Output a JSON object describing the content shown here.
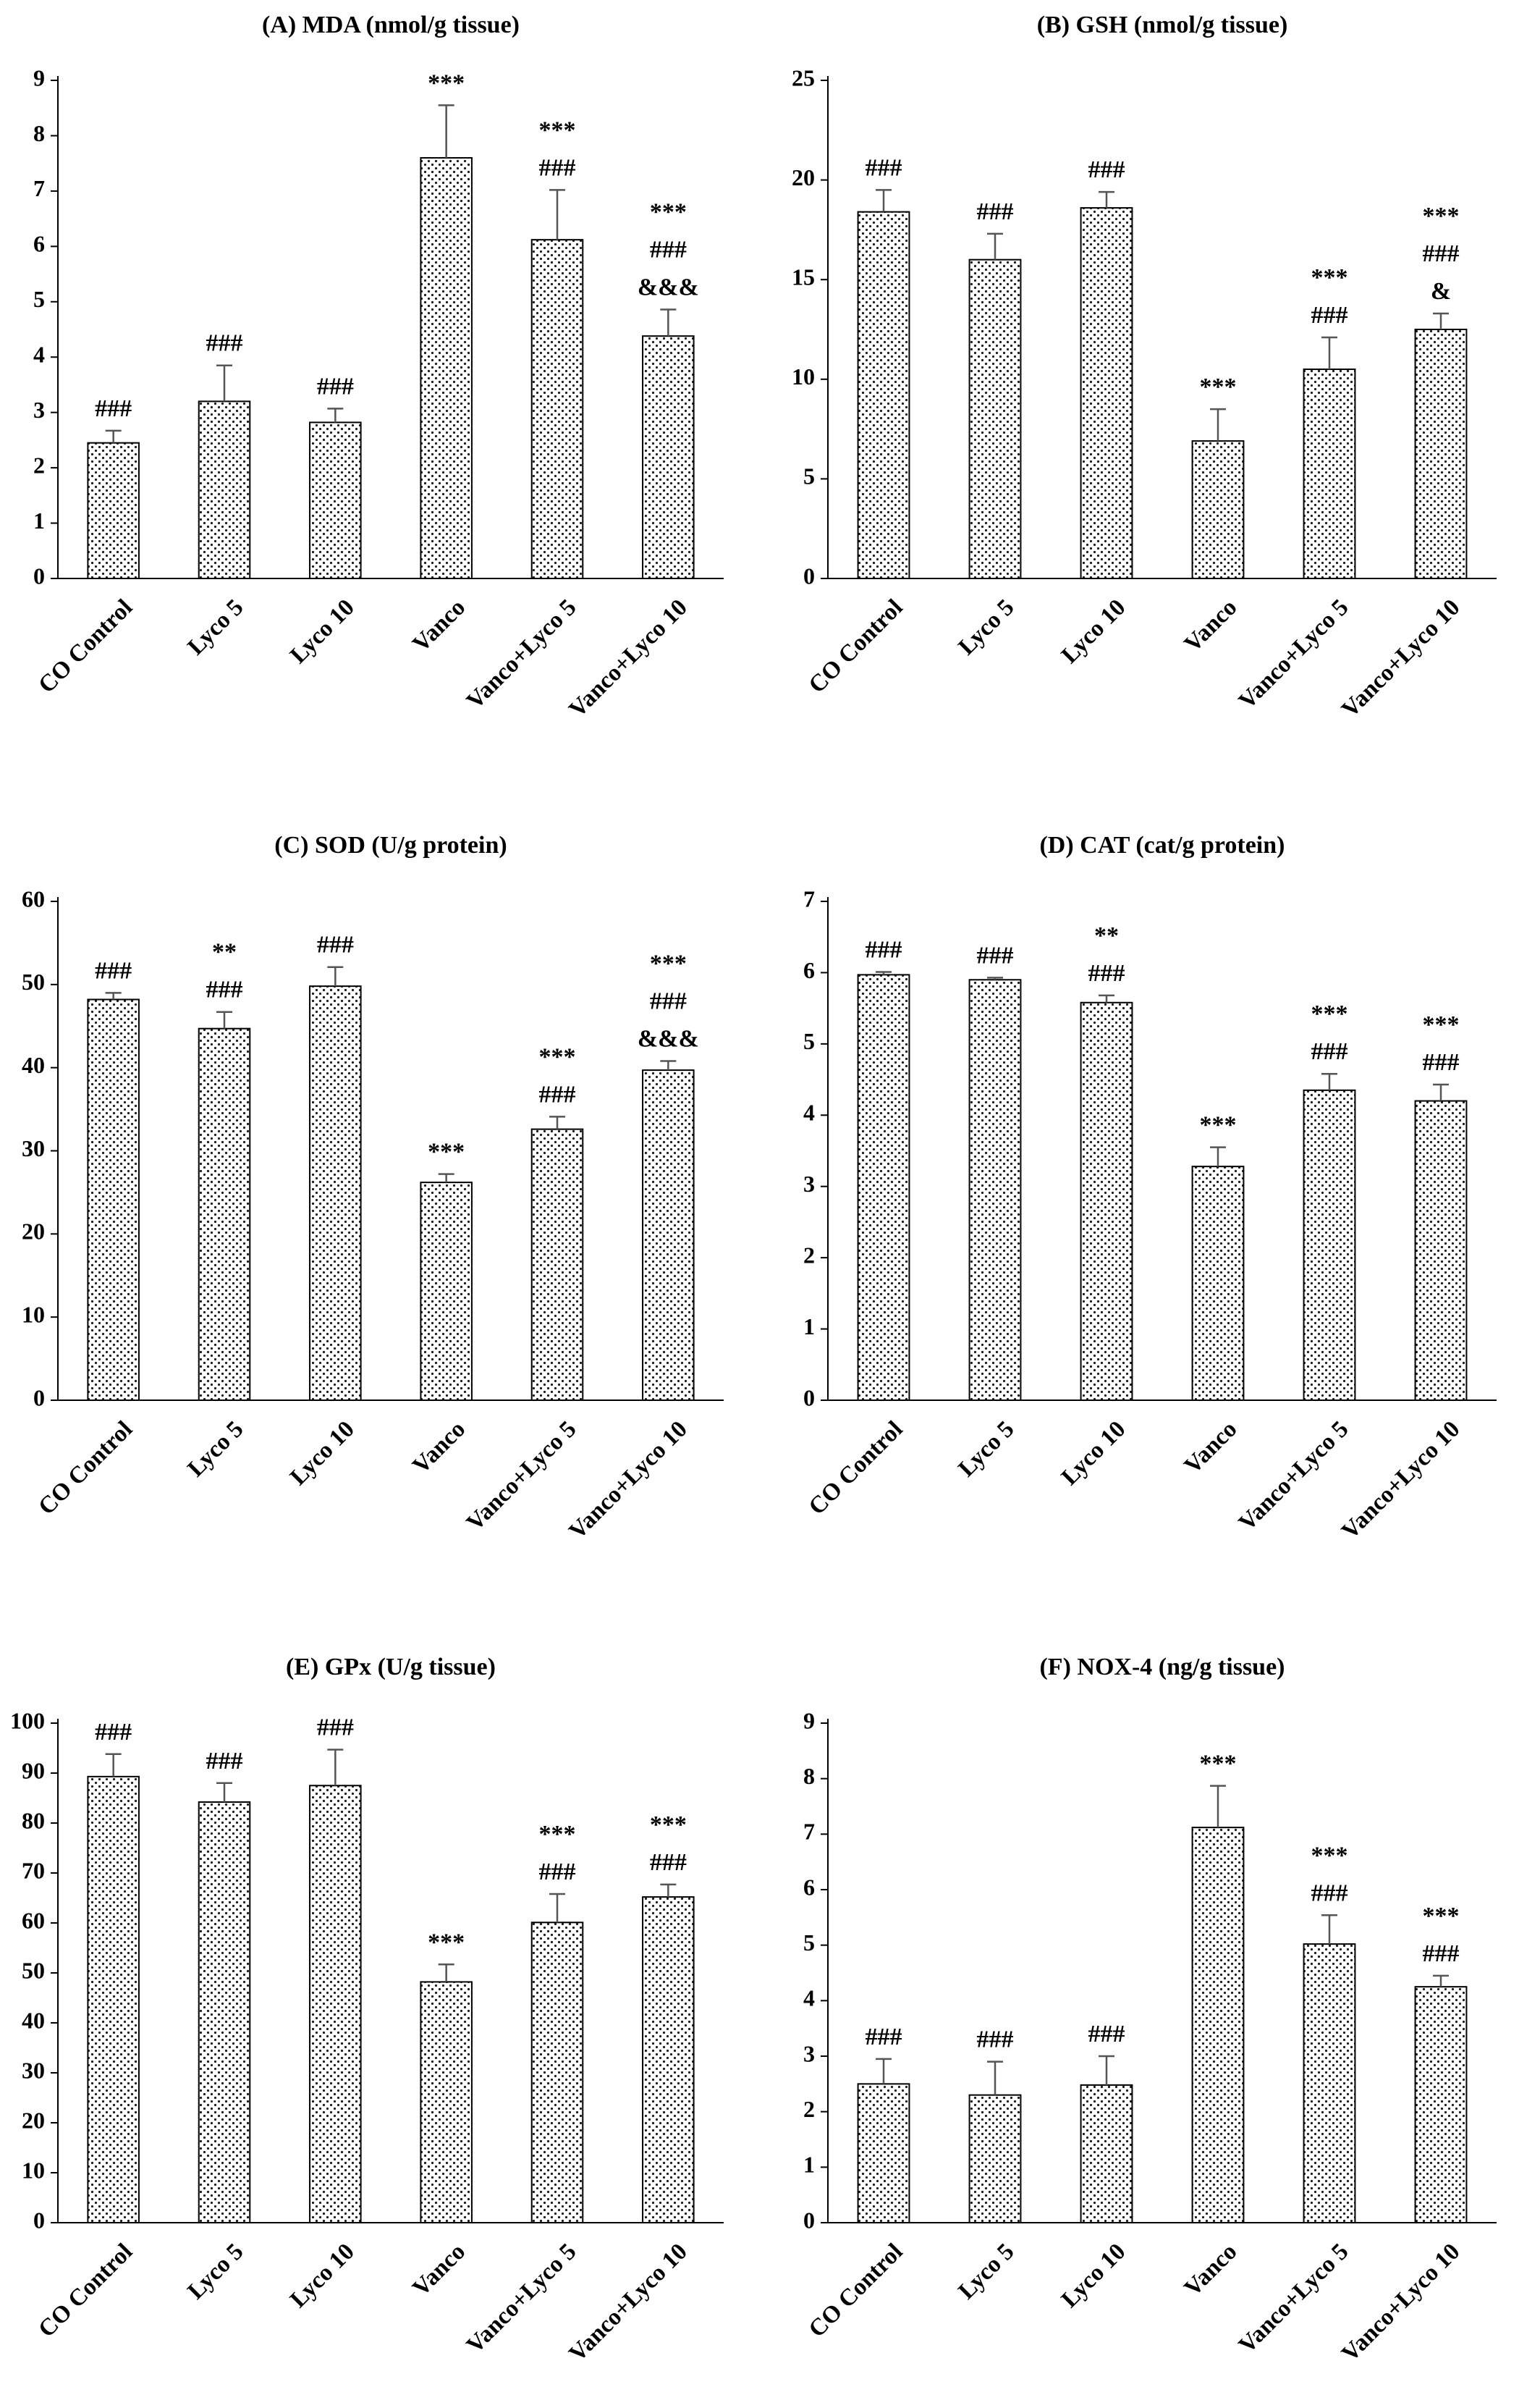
{
  "colors": {
    "bar_fill": "#ffffff",
    "bar_dots": "#1a1a1a",
    "bar_stroke": "#000000",
    "axis": "#000000",
    "error_bar": "#555555"
  },
  "chart_data": [
    {
      "type": "bar",
      "title": "(A) MDA (nmol/g tissue)",
      "categories": [
        "CO Control",
        "Lyco 5",
        "Lyco 10",
        "Vanco",
        "Vanco+Lyco 5",
        "Vanco+Lyco 10"
      ],
      "values": [
        2.45,
        3.2,
        2.82,
        7.6,
        6.12,
        4.38
      ],
      "errors": [
        0.22,
        0.65,
        0.25,
        0.95,
        0.9,
        0.48
      ],
      "annotations": [
        [
          "###"
        ],
        [
          "###"
        ],
        [
          "###"
        ],
        [
          "***"
        ],
        [
          "***",
          "###"
        ],
        [
          "***",
          "###",
          "&&&"
        ]
      ],
      "ylim": [
        0,
        9
      ],
      "yticks": [
        0,
        1,
        2,
        3,
        4,
        5,
        6,
        7,
        8,
        9
      ],
      "grid": false
    },
    {
      "type": "bar",
      "title": "(B) GSH (nmol/g tissue)",
      "categories": [
        "CO Control",
        "Lyco 5",
        "Lyco 10",
        "Vanco",
        "Vanco+Lyco 5",
        "Vanco+Lyco 10"
      ],
      "values": [
        18.4,
        16.0,
        18.6,
        6.9,
        10.5,
        12.5
      ],
      "errors": [
        1.1,
        1.3,
        0.8,
        1.6,
        1.6,
        0.8
      ],
      "annotations": [
        [
          "###"
        ],
        [
          "###"
        ],
        [
          "###"
        ],
        [
          "***"
        ],
        [
          "***",
          "###"
        ],
        [
          "***",
          "###",
          "&"
        ]
      ],
      "ylim": [
        0,
        25
      ],
      "yticks": [
        0,
        5,
        10,
        15,
        20,
        25
      ],
      "grid": false
    },
    {
      "type": "bar",
      "title": "(C) SOD (U/g protein)",
      "categories": [
        "CO Control",
        "Lyco 5",
        "Lyco 10",
        "Vanco",
        "Vanco+Lyco 5",
        "Vanco+Lyco 10"
      ],
      "values": [
        48.2,
        44.7,
        49.8,
        26.2,
        32.6,
        39.7
      ],
      "errors": [
        0.8,
        2.0,
        2.3,
        1.0,
        1.5,
        1.1
      ],
      "annotations": [
        [
          "###"
        ],
        [
          "**",
          "###"
        ],
        [
          "###"
        ],
        [
          "***"
        ],
        [
          "***",
          "###"
        ],
        [
          "***",
          "###",
          "&&&"
        ]
      ],
      "ylim": [
        0,
        60
      ],
      "yticks": [
        0,
        10,
        20,
        30,
        40,
        50,
        60
      ],
      "grid": false
    },
    {
      "type": "bar",
      "title": "(D) CAT (cat/g protein)",
      "categories": [
        "CO Control",
        "Lyco 5",
        "Lyco 10",
        "Vanco",
        "Vanco+Lyco 5",
        "Vanco+Lyco 10"
      ],
      "values": [
        5.97,
        5.9,
        5.58,
        3.28,
        4.35,
        4.2
      ],
      "errors": [
        0.04,
        0.03,
        0.1,
        0.27,
        0.23,
        0.23
      ],
      "annotations": [
        [
          "###"
        ],
        [
          "###"
        ],
        [
          "**",
          "###"
        ],
        [
          "***"
        ],
        [
          "***",
          "###"
        ],
        [
          "***",
          "###"
        ]
      ],
      "ylim": [
        0,
        7
      ],
      "yticks": [
        0,
        1,
        2,
        3,
        4,
        5,
        6,
        7
      ],
      "grid": false
    },
    {
      "type": "bar",
      "title": "(E) GPx (U/g tissue)",
      "categories": [
        "CO Control",
        "Lyco 5",
        "Lyco 10",
        "Vanco",
        "Vanco+Lyco 5",
        "Vanco+Lyco 10"
      ],
      "values": [
        89.3,
        84.2,
        87.5,
        48.2,
        60.1,
        65.2
      ],
      "errors": [
        4.5,
        3.8,
        7.2,
        3.5,
        5.7,
        2.5
      ],
      "annotations": [
        [
          "###"
        ],
        [
          "###"
        ],
        [
          "###"
        ],
        [
          "***"
        ],
        [
          "***",
          "###"
        ],
        [
          "***",
          "###"
        ]
      ],
      "ylim": [
        0,
        100
      ],
      "yticks": [
        0,
        10,
        20,
        30,
        40,
        50,
        60,
        70,
        80,
        90,
        100
      ],
      "grid": false
    },
    {
      "type": "bar",
      "title": "(F) NOX-4 (ng/g tissue)",
      "categories": [
        "CO Control",
        "Lyco 5",
        "Lyco 10",
        "Vanco",
        "Vanco+Lyco 5",
        "Vanco+Lyco 10"
      ],
      "values": [
        2.5,
        2.3,
        2.48,
        7.12,
        5.02,
        4.25
      ],
      "errors": [
        0.45,
        0.6,
        0.52,
        0.75,
        0.52,
        0.2
      ],
      "annotations": [
        [
          "###"
        ],
        [
          "###"
        ],
        [
          "###"
        ],
        [
          "***"
        ],
        [
          "***",
          "###"
        ],
        [
          "***",
          "###"
        ]
      ],
      "ylim": [
        0,
        9
      ],
      "yticks": [
        0,
        1,
        2,
        3,
        4,
        5,
        6,
        7,
        8,
        9
      ],
      "grid": false
    }
  ]
}
